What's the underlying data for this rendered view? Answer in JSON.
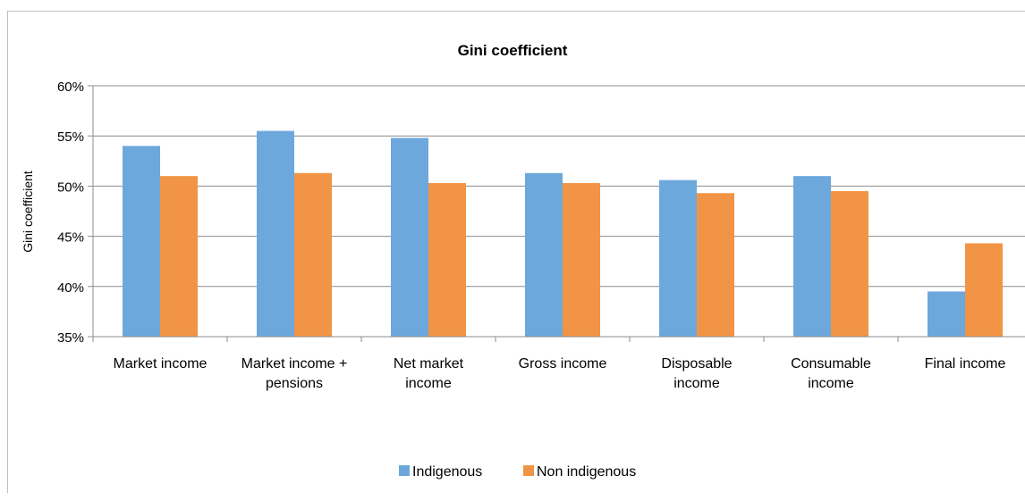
{
  "chart_data": {
    "type": "bar",
    "title": "Gini coefficient",
    "ylabel": "Gini coefficient",
    "xlabel": "",
    "ylim": [
      0.35,
      0.6
    ],
    "y_ticks": [
      "35%",
      "40%",
      "45%",
      "50%",
      "55%",
      "60%"
    ],
    "y_tick_values": [
      0.35,
      0.4,
      0.45,
      0.5,
      0.55,
      0.6
    ],
    "categories": [
      [
        "Market income"
      ],
      [
        "Market income +",
        "pensions"
      ],
      [
        "Net market",
        "income"
      ],
      [
        "Gross income"
      ],
      [
        "Disposable",
        "income"
      ],
      [
        "Consumable",
        "income"
      ],
      [
        "Final income"
      ]
    ],
    "series": [
      {
        "name": "Indigenous",
        "color": "#6CA8DC",
        "values": [
          0.54,
          0.555,
          0.548,
          0.513,
          0.506,
          0.51,
          0.395
        ]
      },
      {
        "name": "Non indigenous",
        "color": "#F19445",
        "values": [
          0.51,
          0.513,
          0.503,
          0.503,
          0.493,
          0.495,
          0.443
        ]
      }
    ],
    "grid": true,
    "legend_position": "bottom"
  }
}
